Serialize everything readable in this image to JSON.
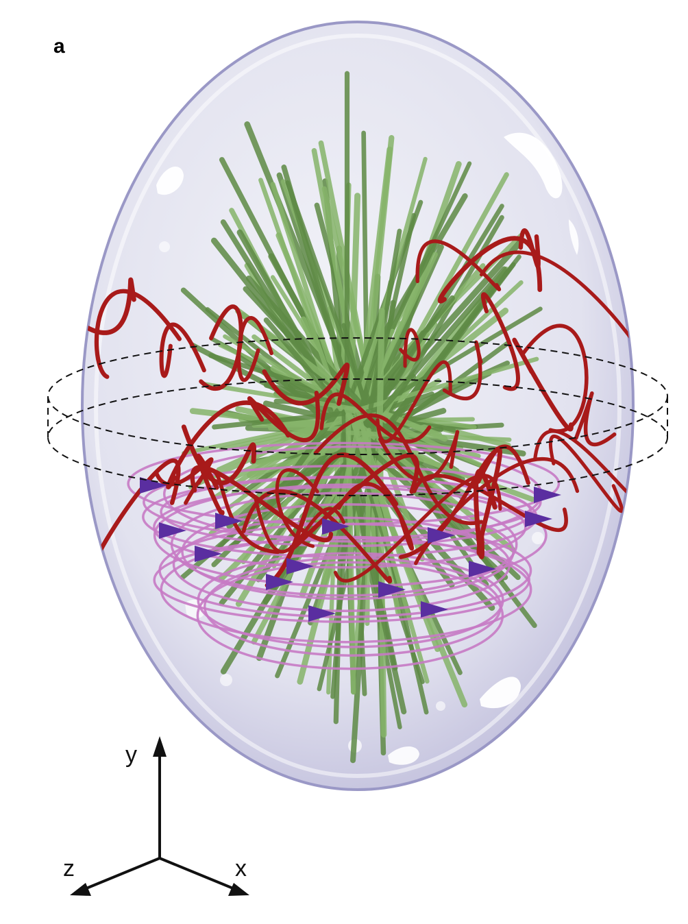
{
  "panel_label": "a",
  "axes": {
    "y_label": "y",
    "x_label": "x",
    "z_label": "z"
  },
  "colors": {
    "shell_fill": "#dcdcee",
    "shell_stroke": "#9a98c6",
    "green_rods": "#5e8a45",
    "green_rods_light": "#86b46a",
    "red_lines": "#a81a1a",
    "pink_lines": "#c77ac4",
    "purple_arrows": "#5a2ea0",
    "dashed_guide": "#111111"
  },
  "icons": {
    "shell": "ellipsoid-shell",
    "field_lines": "field-line-bundle",
    "flow_arrows": "cone-arrow",
    "axis_triad": "axis-triad"
  }
}
